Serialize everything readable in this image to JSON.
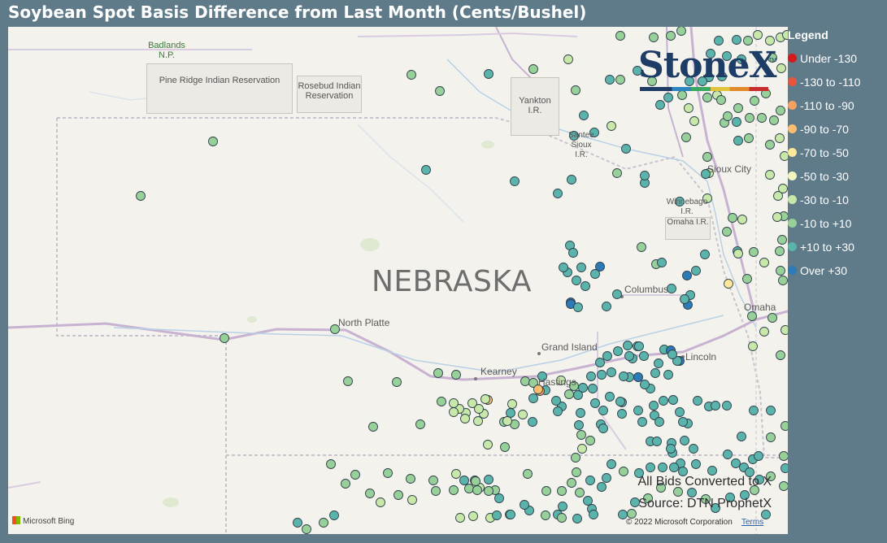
{
  "title": "Soybean Spot Basis Difference from Last Month (Cents/Bushel)",
  "legend": {
    "title": "Legend",
    "items": [
      {
        "label": "Under -130",
        "color": "#d7191c"
      },
      {
        "label": "-130 to -110",
        "color": "#e8553a"
      },
      {
        "label": "-110 to -90",
        "color": "#f4a160"
      },
      {
        "label": "-90 to -70",
        "color": "#fdbf6f"
      },
      {
        "label": "-70 to -50",
        "color": "#fee89b"
      },
      {
        "label": "-50 to -30",
        "color": "#f0f7c0"
      },
      {
        "label": "-30 to -10",
        "color": "#c7e8a9"
      },
      {
        "label": "-10 to +10",
        "color": "#98d09a"
      },
      {
        "label": "+10 to +30",
        "color": "#5ab4ac"
      },
      {
        "label": "Over +30",
        "color": "#2c7bb6"
      }
    ]
  },
  "map": {
    "state_label": "NEBRASKA",
    "places": [
      "North Platte",
      "Kearney",
      "Grand Island",
      "Hastings",
      "Columbus",
      "Lincoln",
      "Omaha",
      "Sioux City",
      "Yankton",
      "Winnebago",
      "Omaha"
    ],
    "regions": [
      {
        "label": "Badlands N.P."
      },
      {
        "label": "Pine Ridge Indian Reservation"
      },
      {
        "label": "Rosebud Indian Reservation"
      },
      {
        "label": "Yankton I.R."
      },
      {
        "label": "Santee Sioux I.R."
      },
      {
        "label": "Winnebago I.R."
      },
      {
        "label": "Omaha I.R."
      }
    ],
    "credit_line1": "All Bids Converted to X",
    "credit_line2": "Source: DTN ProphetX",
    "copyright": "© 2022 Microsoft Corporation",
    "terms": "Terms",
    "bing": "Microsoft Bing",
    "logo": "StoneX",
    "logo_tm": "TM"
  }
}
